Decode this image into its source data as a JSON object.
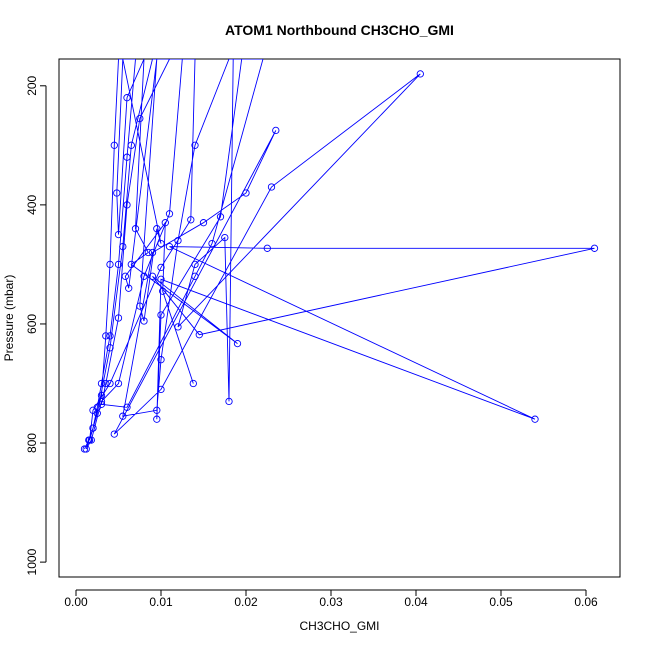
{
  "chart_data": {
    "type": "line",
    "title": "ATOM1 Northbound CH3CHO_GMI",
    "xlabel": "CH3CHO_GMI",
    "ylabel": "Pressure (mbar)",
    "xlim": [
      -0.002,
      0.064
    ],
    "ylim": [
      1025,
      155
    ],
    "y_reversed": true,
    "grid": false,
    "legend": "none",
    "x_ticks": [
      0.0,
      0.01,
      0.02,
      0.03,
      0.04,
      0.05,
      0.06
    ],
    "x_tick_labels": [
      "0.00",
      "0.01",
      "0.02",
      "0.03",
      "0.04",
      "0.05",
      "0.06"
    ],
    "y_ticks": [
      200,
      400,
      600,
      800,
      1000
    ],
    "y_tick_labels": [
      "200",
      "400",
      "600",
      "800",
      "1000"
    ],
    "series": [
      {
        "color": "#0000ff",
        "marker": "open-circle",
        "points": [
          [
            0.001,
            810
          ],
          [
            0.0015,
            795
          ],
          [
            0.002,
            775
          ],
          [
            0.0025,
            740
          ],
          [
            0.003,
            700
          ],
          [
            0.004,
            620
          ],
          [
            0.005,
            500
          ],
          [
            0.006,
            320
          ],
          [
            0.007,
            155
          ],
          [
            0.005,
            155
          ],
          [
            0.0045,
            300
          ],
          [
            0.004,
            500
          ],
          [
            0.0035,
            620
          ],
          [
            0.003,
            720
          ],
          [
            0.002,
            775
          ],
          [
            0.0012,
            810
          ],
          [
            0.0018,
            795
          ],
          [
            0.003,
            730
          ],
          [
            0.005,
            700
          ],
          [
            0.008,
            520
          ],
          [
            0.011,
            415
          ],
          [
            0.0125,
            155
          ],
          [
            0.009,
            155
          ],
          [
            0.0065,
            300
          ],
          [
            0.0055,
            470
          ],
          [
            0.004,
            640
          ],
          [
            0.0025,
            750
          ],
          [
            0.0016,
            795
          ],
          [
            0.002,
            745
          ],
          [
            0.004,
            700
          ],
          [
            0.01,
            505
          ],
          [
            0.0135,
            425
          ],
          [
            0.014,
            155
          ],
          [
            0.011,
            155
          ],
          [
            0.0075,
            255
          ],
          [
            0.006,
            400
          ],
          [
            0.005,
            590
          ],
          [
            0.0035,
            700
          ],
          [
            0.003,
            735
          ],
          [
            0.006,
            740
          ],
          [
            0.014,
            520
          ],
          [
            0.016,
            465
          ],
          [
            0.022,
            155
          ],
          [
            0.018,
            155
          ],
          [
            0.014,
            300
          ],
          [
            0.012,
            460
          ],
          [
            0.01,
            660
          ],
          [
            0.0095,
            745
          ],
          [
            0.0055,
            755
          ],
          [
            0.009,
            480
          ],
          [
            0.015,
            430
          ],
          [
            0.02,
            380
          ],
          [
            0.0235,
            275
          ],
          [
            0.0045,
            785
          ],
          [
            0.01,
            710
          ],
          [
            0.023,
            370
          ],
          [
            0.0405,
            180
          ],
          [
            0.012,
            605
          ],
          [
            0.014,
            500
          ],
          [
            0.0175,
            455
          ],
          [
            0.018,
            730
          ],
          [
            0.0185,
            155
          ],
          [
            0.0195,
            155
          ],
          [
            0.017,
            420
          ],
          [
            0.01,
            585
          ],
          [
            0.0095,
            760
          ],
          [
            0.01,
            525
          ],
          [
            0.054,
            760
          ],
          [
            0.011,
            470
          ],
          [
            0.0225,
            473
          ],
          [
            0.061,
            473
          ],
          [
            0.0145,
            618
          ],
          [
            0.009,
            520
          ],
          [
            0.019,
            633
          ],
          [
            0.0065,
            500
          ],
          [
            0.0085,
            480
          ],
          [
            0.007,
            440
          ],
          [
            0.008,
            155
          ],
          [
            0.006,
            220
          ],
          [
            0.005,
            450
          ],
          [
            0.0048,
            380
          ],
          [
            0.0055,
            155
          ],
          [
            0.01,
            465
          ],
          [
            0.0095,
            440
          ],
          [
            0.008,
            595
          ],
          [
            0.0075,
            570
          ],
          [
            0.0095,
            155
          ],
          [
            0.0062,
            540
          ],
          [
            0.0058,
            520
          ],
          [
            0.0105,
            430
          ],
          [
            0.0102,
            545
          ],
          [
            0.0138,
            700
          ]
        ]
      }
    ]
  }
}
